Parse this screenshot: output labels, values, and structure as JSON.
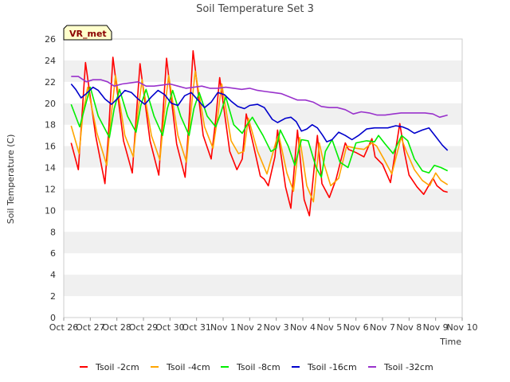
{
  "chart_data": {
    "type": "line",
    "title": "Soil Temperature Set 3",
    "xlabel": "Time",
    "ylabel": "Soil Temperature (C)",
    "ylim": [
      0,
      26
    ],
    "yticks": [
      0,
      2,
      4,
      6,
      8,
      10,
      12,
      14,
      16,
      18,
      20,
      22,
      24,
      26
    ],
    "xlim": [
      0,
      15
    ],
    "xtick_labels": [
      "Oct 26",
      "Oct 27",
      "Oct 28",
      "Oct 29",
      "Oct 30",
      "Oct 31",
      "Nov 1",
      "Nov 2",
      "Nov 3",
      "Nov 4",
      "Nov 5",
      "Nov 6",
      "Nov 7",
      "Nov 8",
      "Nov 9",
      "Nov 10"
    ],
    "x_units": "days since Oct 26",
    "badge": "VR_met",
    "grid": "alternating horizontal bands",
    "legend_position": "bottom",
    "series": [
      {
        "name": "Tsoil -2cm",
        "color": "#ff0000",
        "x": [
          0.28,
          0.55,
          0.65,
          0.82,
          1.2,
          1.55,
          1.68,
          1.85,
          2.25,
          2.58,
          2.72,
          2.87,
          3.25,
          3.58,
          3.72,
          3.87,
          4.25,
          4.57,
          4.72,
          4.87,
          5.25,
          5.55,
          5.72,
          5.87,
          6.25,
          6.52,
          6.72,
          6.87,
          7.15,
          7.4,
          7.55,
          7.7,
          7.95,
          8.05,
          8.35,
          8.55,
          8.8,
          9.05,
          9.25,
          9.55,
          9.72,
          10.0,
          10.25,
          10.6,
          10.72,
          11.0,
          11.3,
          11.6,
          11.72,
          12.0,
          12.3,
          12.65,
          12.82,
          13.0,
          13.3,
          13.55,
          13.9,
          14.05,
          14.3,
          14.45
        ],
        "y": [
          16.3,
          13.8,
          17.5,
          23.8,
          17.0,
          12.5,
          17.0,
          24.3,
          16.5,
          13.5,
          18.5,
          23.7,
          16.5,
          13.3,
          18.5,
          24.2,
          16.2,
          13.1,
          18.5,
          24.9,
          17.0,
          14.8,
          18.5,
          22.4,
          15.5,
          13.8,
          14.8,
          19.0,
          16.0,
          13.2,
          12.9,
          12.3,
          15.0,
          17.5,
          12.2,
          10.2,
          17.5,
          11.0,
          9.5,
          17.0,
          12.5,
          11.2,
          12.9,
          16.3,
          15.7,
          15.4,
          15.0,
          16.7,
          15.0,
          14.3,
          12.6,
          18.1,
          15.5,
          13.3,
          12.2,
          11.5,
          13.0,
          12.3,
          11.8,
          11.7
        ]
      },
      {
        "name": "Tsoil -4cm",
        "color": "#ffa500",
        "x": [
          0.28,
          0.58,
          0.72,
          0.9,
          1.25,
          1.62,
          1.75,
          1.95,
          2.3,
          2.62,
          2.78,
          2.95,
          3.3,
          3.62,
          3.78,
          3.95,
          4.3,
          4.62,
          4.78,
          4.95,
          5.3,
          5.62,
          5.78,
          5.95,
          6.3,
          6.58,
          6.78,
          6.95,
          7.3,
          7.65,
          8.0,
          8.1,
          8.4,
          8.65,
          8.88,
          9.15,
          9.4,
          9.62,
          9.78,
          10.05,
          10.35,
          10.65,
          11.0,
          11.3,
          11.6,
          11.78,
          12.05,
          12.35,
          12.7,
          12.9,
          13.2,
          13.5,
          13.78,
          14.0,
          14.2,
          14.45
        ],
        "y": [
          17.9,
          15.3,
          19.0,
          21.5,
          17.2,
          14.2,
          18.0,
          22.6,
          17.0,
          15.0,
          19.0,
          22.2,
          17.0,
          14.7,
          19.0,
          22.6,
          17.0,
          14.5,
          19.0,
          23.0,
          17.8,
          15.8,
          18.5,
          21.8,
          16.5,
          15.3,
          15.5,
          18.6,
          15.5,
          13.4,
          16.5,
          17.0,
          13.5,
          11.8,
          16.8,
          12.3,
          10.8,
          16.3,
          14.5,
          12.3,
          13.0,
          16.0,
          15.8,
          15.7,
          16.3,
          16.0,
          14.8,
          13.4,
          16.8,
          15.5,
          13.8,
          12.8,
          12.3,
          13.5,
          12.8,
          12.4
        ]
      },
      {
        "name": "Tsoil -8cm",
        "color": "#00ee00",
        "x": [
          0.28,
          0.6,
          0.75,
          1.0,
          1.3,
          1.72,
          1.9,
          2.1,
          2.4,
          2.72,
          2.9,
          3.1,
          3.4,
          3.72,
          3.9,
          4.1,
          4.4,
          4.72,
          4.9,
          5.1,
          5.4,
          5.72,
          5.9,
          6.1,
          6.4,
          6.72,
          6.9,
          7.1,
          7.5,
          7.8,
          8.0,
          8.15,
          8.45,
          8.7,
          8.95,
          9.2,
          9.5,
          9.7,
          9.85,
          10.1,
          10.4,
          10.7,
          11.0,
          11.4,
          11.7,
          11.85,
          12.1,
          12.4,
          12.72,
          12.95,
          13.2,
          13.5,
          13.75,
          13.95,
          14.2,
          14.45
        ],
        "y": [
          19.9,
          17.8,
          19.2,
          21.5,
          18.8,
          16.8,
          19.5,
          21.3,
          18.8,
          17.3,
          19.8,
          21.3,
          18.8,
          17.0,
          19.5,
          21.2,
          18.8,
          17.0,
          19.5,
          21.0,
          18.8,
          17.8,
          19.0,
          20.6,
          18.0,
          17.2,
          18.0,
          18.7,
          17.0,
          15.5,
          15.8,
          17.5,
          16.0,
          14.2,
          16.6,
          16.5,
          14.0,
          13.1,
          15.5,
          16.6,
          14.5,
          14.0,
          16.3,
          16.5,
          16.4,
          17.0,
          16.2,
          15.3,
          17.0,
          16.5,
          14.8,
          13.7,
          13.5,
          14.2,
          14.0,
          13.7
        ]
      },
      {
        "name": "Tsoil -16cm",
        "color": "#0000cc",
        "x": [
          0.28,
          0.45,
          0.65,
          0.85,
          1.1,
          1.3,
          1.55,
          1.8,
          2.05,
          2.3,
          2.55,
          2.8,
          3.05,
          3.3,
          3.55,
          3.8,
          4.05,
          4.3,
          4.55,
          4.8,
          5.05,
          5.3,
          5.55,
          5.8,
          6.05,
          6.3,
          6.55,
          6.8,
          7.0,
          7.3,
          7.55,
          7.85,
          8.05,
          8.35,
          8.55,
          8.75,
          8.95,
          9.15,
          9.35,
          9.55,
          9.75,
          9.9,
          10.1,
          10.35,
          10.6,
          10.85,
          11.1,
          11.4,
          11.7,
          11.95,
          12.2,
          12.5,
          12.75,
          12.95,
          13.2,
          13.5,
          13.75,
          14.0,
          14.25,
          14.45
        ],
        "y": [
          21.8,
          21.3,
          20.5,
          20.9,
          21.5,
          21.2,
          20.4,
          19.9,
          20.5,
          21.2,
          21.0,
          20.4,
          19.9,
          20.6,
          21.2,
          20.8,
          20.0,
          19.8,
          20.7,
          21.0,
          20.3,
          19.6,
          20.1,
          21.0,
          20.8,
          20.2,
          19.7,
          19.5,
          19.8,
          19.9,
          19.6,
          18.5,
          18.2,
          18.6,
          18.7,
          18.3,
          17.4,
          17.6,
          18.0,
          17.7,
          17.0,
          16.4,
          16.6,
          17.3,
          17.0,
          16.6,
          17.0,
          17.6,
          17.7,
          17.7,
          17.7,
          17.9,
          17.8,
          17.6,
          17.2,
          17.5,
          17.7,
          16.9,
          16.1,
          15.6
        ]
      },
      {
        "name": "Tsoil -32cm",
        "color": "#9932cc",
        "x": [
          0.28,
          0.55,
          0.85,
          1.1,
          1.4,
          1.65,
          1.9,
          2.2,
          2.5,
          2.8,
          3.1,
          3.4,
          3.7,
          4.0,
          4.3,
          4.6,
          4.9,
          5.2,
          5.5,
          5.8,
          6.1,
          6.4,
          6.7,
          7.0,
          7.3,
          7.6,
          7.9,
          8.2,
          8.5,
          8.8,
          9.1,
          9.4,
          9.7,
          10.0,
          10.3,
          10.6,
          10.9,
          11.2,
          11.5,
          11.8,
          12.1,
          12.4,
          12.7,
          13.0,
          13.3,
          13.6,
          13.9,
          14.15,
          14.45
        ],
        "y": [
          22.5,
          22.5,
          22.0,
          22.2,
          22.2,
          22.0,
          21.6,
          21.8,
          21.9,
          22.0,
          21.6,
          21.6,
          21.7,
          21.8,
          21.6,
          21.4,
          21.5,
          21.6,
          21.4,
          21.4,
          21.5,
          21.4,
          21.3,
          21.4,
          21.2,
          21.1,
          21.0,
          20.9,
          20.6,
          20.3,
          20.3,
          20.1,
          19.7,
          19.6,
          19.6,
          19.4,
          19.0,
          19.2,
          19.1,
          18.9,
          18.9,
          19.0,
          19.1,
          19.1,
          19.1,
          19.1,
          19.0,
          18.7,
          18.9
        ]
      }
    ]
  }
}
